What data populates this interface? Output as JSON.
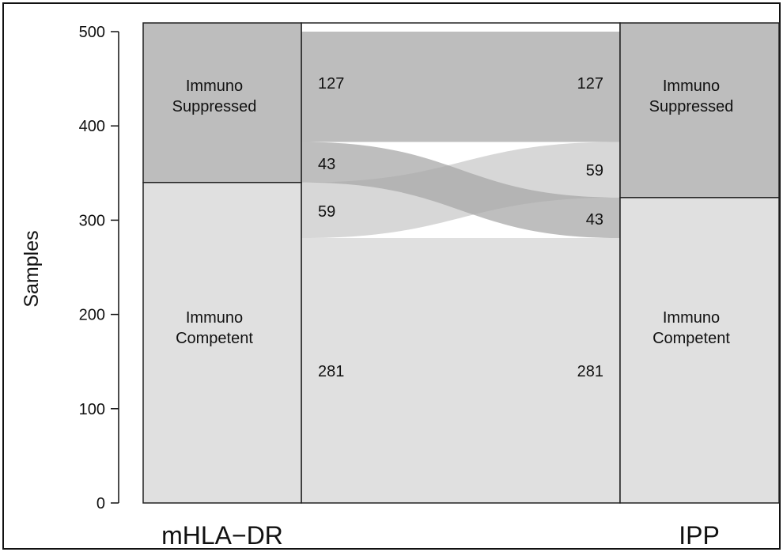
{
  "chart_data": {
    "type": "alluvial",
    "ylabel": "Samples",
    "ylim": [
      0,
      500
    ],
    "yticks": [
      0,
      100,
      200,
      300,
      400,
      500
    ],
    "axes": [
      {
        "name": "mHLA−DR",
        "strata": [
          {
            "line1": "Immuno",
            "line2": "Competent",
            "value": 340
          },
          {
            "line1": "Immuno",
            "line2": "Suppressed",
            "value": 170
          }
        ]
      },
      {
        "name": "IPP",
        "strata": [
          {
            "line1": "Immuno",
            "line2": "Competent",
            "value": 324
          },
          {
            "line1": "Immuno",
            "line2": "Suppressed",
            "value": 186
          }
        ]
      }
    ],
    "flows": [
      {
        "from": "Immuno Competent",
        "to": "Immuno Competent",
        "value": 281,
        "label_left": "281",
        "label_right": "281"
      },
      {
        "from": "Immuno Competent",
        "to": "Immuno Suppressed",
        "value": 59,
        "label_left": "59",
        "label_right": "59"
      },
      {
        "from": "Immuno Suppressed",
        "to": "Immuno Competent",
        "value": 43,
        "label_left": "43",
        "label_right": "43"
      },
      {
        "from": "Immuno Suppressed",
        "to": "Immuno Suppressed",
        "value": 127,
        "label_left": "127",
        "label_right": "127"
      }
    ],
    "colors": {
      "competent": "#e0e0e0",
      "suppressed": "#bdbdbd",
      "flow_competent_to_suppressed": "#d3d3d3",
      "flow_suppressed_to_competent": "#a8a8a8",
      "stroke": "#222222"
    }
  }
}
